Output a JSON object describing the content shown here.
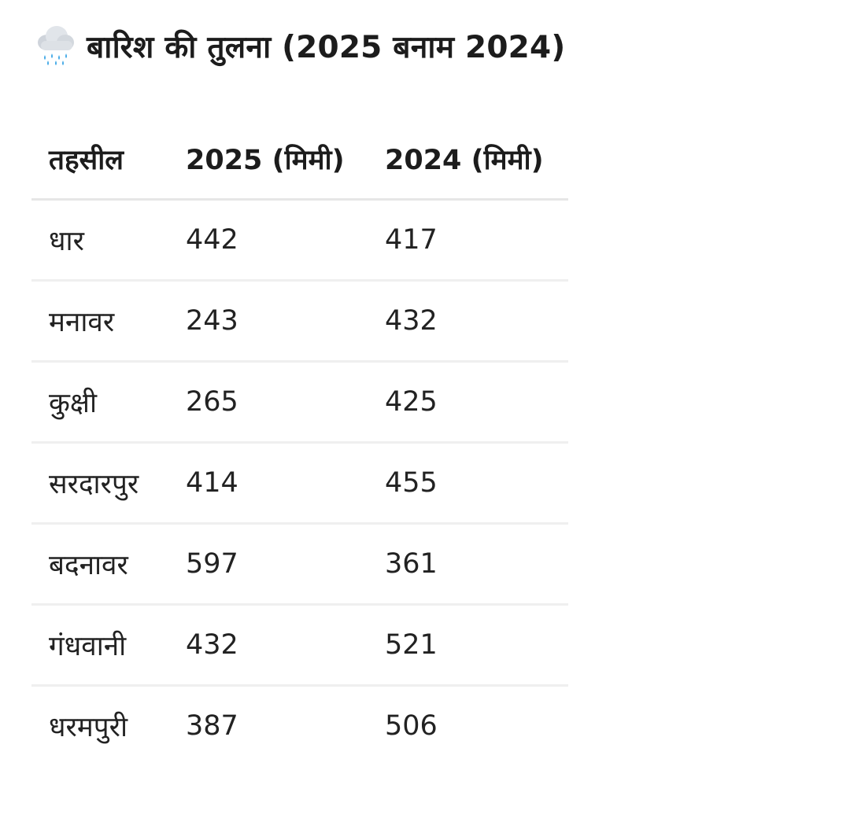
{
  "header": {
    "icon": "cloud-with-rain-icon",
    "title": "बारिश की तुलना (2025 बनाम 2024)"
  },
  "table": {
    "headers": [
      "तहसील",
      "2025 (मिमी)",
      "2024 (मिमी)"
    ],
    "rows": [
      [
        "धार",
        "442",
        "417"
      ],
      [
        "मनावर",
        "243",
        "432"
      ],
      [
        "कुक्षी",
        "265",
        "425"
      ],
      [
        "सरदारपुर",
        "414",
        "455"
      ],
      [
        "बदनावर",
        "597",
        "361"
      ],
      [
        "गंधवानी",
        "432",
        "521"
      ],
      [
        "धरमपुरी",
        "387",
        "506"
      ]
    ]
  },
  "colors": {
    "text": "#1f1f1f",
    "divider": "#e6e6e6",
    "cloud": "#d9dde3",
    "rain": "#3fa7e6"
  }
}
